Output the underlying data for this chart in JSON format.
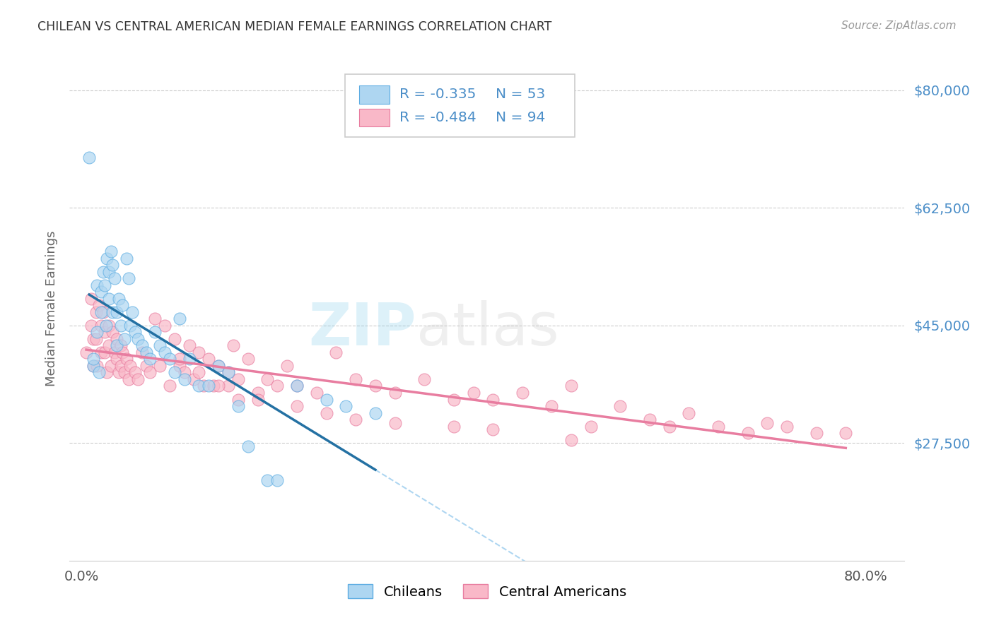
{
  "title": "CHILEAN VS CENTRAL AMERICAN MEDIAN FEMALE EARNINGS CORRELATION CHART",
  "source": "Source: ZipAtlas.com",
  "ylabel": "Median Female Earnings",
  "ytick_labels": [
    "$27,500",
    "$45,000",
    "$62,500",
    "$80,000"
  ],
  "ytick_values": [
    27500,
    45000,
    62500,
    80000
  ],
  "ymin": 10000,
  "ymax": 85000,
  "xmin": -0.012,
  "xmax": 0.84,
  "legend_r1": "R = -0.335",
  "legend_n1": "N = 53",
  "legend_r2": "R = -0.484",
  "legend_n2": "N = 94",
  "legend_label1": "Chileans",
  "legend_label2": "Central Americans",
  "scatter_chileans_x": [
    0.008,
    0.012,
    0.016,
    0.016,
    0.018,
    0.02,
    0.02,
    0.022,
    0.024,
    0.025,
    0.026,
    0.028,
    0.028,
    0.03,
    0.032,
    0.032,
    0.034,
    0.036,
    0.036,
    0.038,
    0.04,
    0.042,
    0.044,
    0.046,
    0.048,
    0.05,
    0.052,
    0.055,
    0.058,
    0.062,
    0.066,
    0.07,
    0.075,
    0.08,
    0.085,
    0.09,
    0.095,
    0.1,
    0.105,
    0.11,
    0.12,
    0.13,
    0.14,
    0.15,
    0.16,
    0.17,
    0.19,
    0.2,
    0.22,
    0.25,
    0.27,
    0.3,
    0.012
  ],
  "scatter_chileans_y": [
    70000,
    39000,
    51000,
    44000,
    38000,
    50000,
    47000,
    53000,
    51000,
    45000,
    55000,
    53000,
    49000,
    56000,
    54000,
    47000,
    52000,
    47000,
    42000,
    49000,
    45000,
    48000,
    43000,
    55000,
    52000,
    45000,
    47000,
    44000,
    43000,
    42000,
    41000,
    40000,
    44000,
    42000,
    41000,
    40000,
    38000,
    46000,
    37000,
    40000,
    36000,
    36000,
    39000,
    38000,
    33000,
    27000,
    22000,
    22000,
    36000,
    34000,
    33000,
    32000,
    40000
  ],
  "scatter_central_x": [
    0.005,
    0.01,
    0.01,
    0.012,
    0.012,
    0.015,
    0.015,
    0.016,
    0.018,
    0.02,
    0.02,
    0.022,
    0.024,
    0.024,
    0.026,
    0.028,
    0.028,
    0.03,
    0.032,
    0.034,
    0.036,
    0.036,
    0.038,
    0.04,
    0.04,
    0.042,
    0.044,
    0.046,
    0.048,
    0.05,
    0.055,
    0.058,
    0.062,
    0.066,
    0.07,
    0.075,
    0.08,
    0.085,
    0.09,
    0.095,
    0.1,
    0.105,
    0.11,
    0.115,
    0.12,
    0.125,
    0.13,
    0.135,
    0.14,
    0.15,
    0.155,
    0.16,
    0.17,
    0.18,
    0.19,
    0.2,
    0.21,
    0.22,
    0.24,
    0.26,
    0.28,
    0.3,
    0.32,
    0.35,
    0.38,
    0.4,
    0.42,
    0.45,
    0.48,
    0.5,
    0.52,
    0.55,
    0.58,
    0.6,
    0.62,
    0.65,
    0.68,
    0.7,
    0.72,
    0.75,
    0.78,
    0.1,
    0.12,
    0.15,
    0.18,
    0.22,
    0.25,
    0.28,
    0.32,
    0.38,
    0.42,
    0.14,
    0.16,
    0.5
  ],
  "scatter_central_y": [
    41000,
    49000,
    45000,
    43000,
    39000,
    47000,
    43000,
    39000,
    48000,
    45000,
    41000,
    47000,
    44000,
    41000,
    38000,
    45000,
    42000,
    39000,
    44000,
    41000,
    43000,
    40000,
    38000,
    42000,
    39000,
    41000,
    38000,
    40000,
    37000,
    39000,
    38000,
    37000,
    41000,
    39000,
    38000,
    46000,
    39000,
    45000,
    36000,
    43000,
    39000,
    38000,
    42000,
    37000,
    41000,
    36000,
    40000,
    36000,
    39000,
    38000,
    42000,
    37000,
    40000,
    35000,
    37000,
    36000,
    39000,
    36000,
    35000,
    41000,
    37000,
    36000,
    35000,
    37000,
    34000,
    35000,
    34000,
    35000,
    33000,
    36000,
    30000,
    33000,
    31000,
    30000,
    32000,
    30000,
    29000,
    30500,
    30000,
    29000,
    29000,
    40000,
    38000,
    36000,
    34000,
    33000,
    32000,
    31000,
    30500,
    30000,
    29500,
    36000,
    34000,
    28000
  ],
  "chilean_face_color": "#AED6F1",
  "chilean_edge_color": "#5DADE2",
  "central_face_color": "#F9B8C8",
  "central_edge_color": "#E87DA0",
  "chilean_line_color": "#2471A3",
  "central_line_color": "#E87DA0",
  "dashed_line_color": "#AED6F1",
  "title_color": "#333333",
  "axis_label_color": "#666666",
  "ytick_color": "#4B8EC8",
  "xtick_color": "#555555",
  "grid_color": "#CCCCCC",
  "source_color": "#999999",
  "legend_text_color": "#4B8EC8"
}
